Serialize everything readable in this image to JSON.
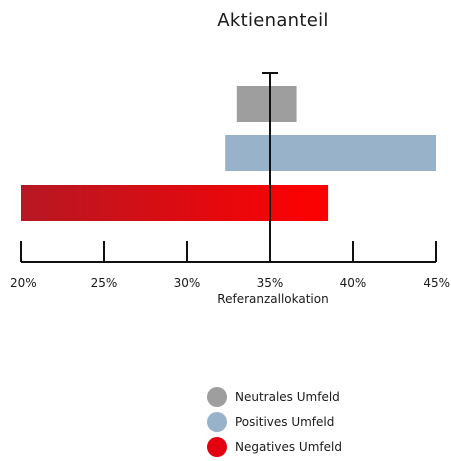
{
  "chart_data": {
    "type": "bar",
    "orientation": "horizontal",
    "title": "Aktienanteil",
    "xlabel": "Referanzallokation",
    "ylabel": "",
    "xlim": [
      20,
      45
    ],
    "ticks": [
      20,
      25,
      30,
      35,
      40,
      45
    ],
    "tick_labels": [
      "20%",
      "25%",
      "30%",
      "35%",
      "40%",
      "45%"
    ],
    "reference_value": 35,
    "series": [
      {
        "name": "Neutrales Umfeld",
        "start": 33,
        "end": 36.6,
        "color": "#9e9e9e"
      },
      {
        "name": "Positives Umfeld",
        "start": 32.3,
        "end": 45,
        "color": "#98b3c9"
      },
      {
        "name": "Negatives Umfeld",
        "start": 20,
        "end": 38.5,
        "color": "#e3000f",
        "gradient": [
          "#b61824",
          "#ff0000"
        ]
      }
    ],
    "grid": false,
    "legend_position": "bottom"
  }
}
